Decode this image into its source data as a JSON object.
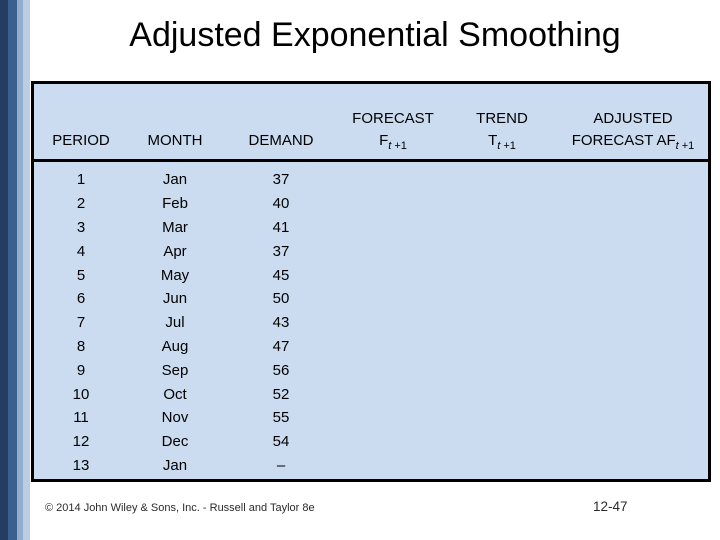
{
  "slide": {
    "title": "Adjusted Exponential Smoothing",
    "footer": "© 2014 John Wiley & Sons, Inc. - Russell and Taylor 8e",
    "page_number": "12-47"
  },
  "colors": {
    "table_bg": "#cbdcf0",
    "table_border": "#000000",
    "stripe_navy": "#263d5f",
    "stripe_blue": "#3a6090",
    "stripe_light": "#93adcc",
    "stripe_lighter": "#bccde3"
  },
  "table": {
    "columns": [
      {
        "line1": "",
        "line2": "PERIOD"
      },
      {
        "line1": "",
        "line2": "MONTH"
      },
      {
        "line1": "",
        "line2": "DEMAND"
      },
      {
        "line1": "FORECAST",
        "base": "F",
        "sub_italic": "t",
        "sub_rest": " +1"
      },
      {
        "line1": "TREND",
        "base": "T",
        "sub_italic": "t",
        "sub_rest": " +1"
      },
      {
        "line1": "ADJUSTED",
        "base": "FORECAST AF",
        "sub_italic": "t",
        "sub_rest": " +1"
      }
    ],
    "rows": [
      [
        "1",
        "Jan",
        "37",
        "",
        "",
        ""
      ],
      [
        "2",
        "Feb",
        "40",
        "",
        "",
        ""
      ],
      [
        "3",
        "Mar",
        "41",
        "",
        "",
        ""
      ],
      [
        "4",
        "Apr",
        "37",
        "",
        "",
        ""
      ],
      [
        "5",
        "May",
        "45",
        "",
        "",
        ""
      ],
      [
        "6",
        "Jun",
        "50",
        "",
        "",
        ""
      ],
      [
        "7",
        "Jul",
        "43",
        "",
        "",
        ""
      ],
      [
        "8",
        "Aug",
        "47",
        "",
        "",
        ""
      ],
      [
        "9",
        "Sep",
        "56",
        "",
        "",
        ""
      ],
      [
        "10",
        "Oct",
        "52",
        "",
        "",
        ""
      ],
      [
        "11",
        "Nov",
        "55",
        "",
        "",
        ""
      ],
      [
        "12",
        "Dec",
        "54",
        "",
        "",
        ""
      ],
      [
        "13",
        "Jan",
        "–",
        "",
        "",
        ""
      ]
    ]
  }
}
